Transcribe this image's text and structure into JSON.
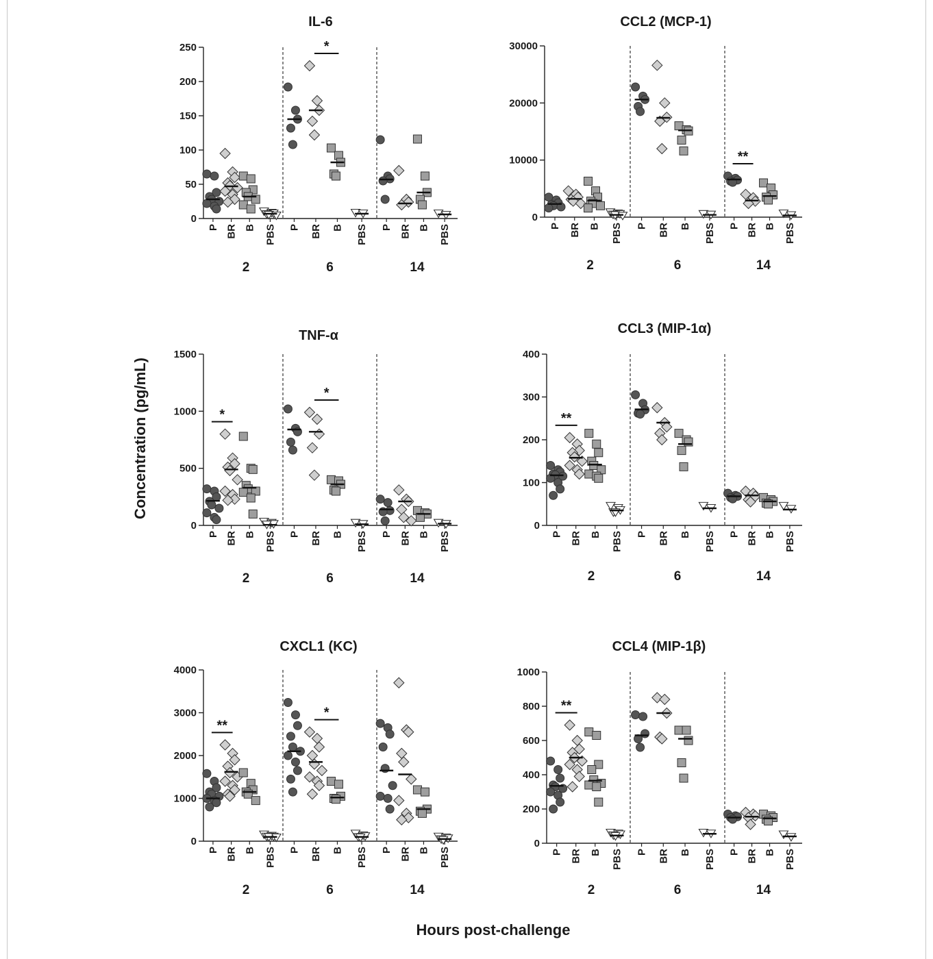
{
  "figure": {
    "ylabel": "Concentration (pg/mL)",
    "xlabel": "Hours post-challenge"
  },
  "colors": {
    "P": "#555555",
    "BR": "#cfcfcf",
    "B": "#9e9e9e",
    "PBS": "#ffffff",
    "stroke": "#333333"
  },
  "chart_data": [
    {
      "type": "scatter",
      "title": "IL-6",
      "ylim": [
        0,
        250
      ],
      "yticks": [
        0,
        50,
        100,
        150,
        200,
        250
      ],
      "timepoints": [
        "2",
        "6",
        "14"
      ],
      "groups": [
        "P",
        "BR",
        "B",
        "PBS"
      ],
      "markers": {
        "P": "circle",
        "BR": "diamond",
        "B": "square",
        "PBS": "triangle-down"
      },
      "data": [
        {
          "P": [
            65,
            62,
            38,
            32,
            28,
            25,
            22,
            18,
            14
          ],
          "BR": [
            95,
            68,
            60,
            52,
            48,
            45,
            40,
            35,
            28,
            24
          ],
          "B": [
            62,
            58,
            42,
            38,
            32,
            28,
            20,
            14
          ],
          "PBS": [
            10,
            8,
            7,
            6,
            5,
            4
          ]
        },
        {
          "P": [
            192,
            158,
            145,
            132,
            108
          ],
          "BR": [
            223,
            172,
            158,
            142,
            122
          ],
          "B": [
            103,
            92,
            82,
            65,
            62
          ],
          "PBS": [
            8,
            7
          ]
        },
        {
          "P": [
            115,
            62,
            58,
            55,
            28
          ],
          "BR": [
            70,
            28,
            24,
            20
          ],
          "B": [
            116,
            62,
            38,
            28,
            20
          ],
          "PBS": [
            7,
            5
          ]
        }
      ],
      "medians": [
        [
          28,
          47,
          32,
          7
        ],
        [
          145,
          158,
          82,
          7
        ],
        [
          57,
          22,
          38,
          6
        ]
      ],
      "significance": [
        {
          "timepoint": 1,
          "from": 1,
          "to": 2,
          "label": "*"
        }
      ]
    },
    {
      "type": "scatter",
      "title": "CCL2 (MCP-1)",
      "ylim": [
        0,
        30000
      ],
      "yticks": [
        0,
        10000,
        20000,
        30000
      ],
      "timepoints": [
        "2",
        "6",
        "14"
      ],
      "groups": [
        "P",
        "BR",
        "B",
        "PBS"
      ],
      "markers": {
        "P": "circle",
        "BR": "diamond",
        "B": "square",
        "PBS": "triangle-down"
      },
      "data": [
        {
          "P": [
            3500,
            3000,
            2500,
            2200,
            2000,
            1800,
            1600
          ],
          "BR": [
            4600,
            4000,
            3500,
            3100,
            2800,
            2400
          ],
          "B": [
            6300,
            4600,
            3500,
            2800,
            2400,
            2000,
            1600
          ],
          "PBS": [
            800,
            600,
            500,
            400,
            300,
            200
          ]
        },
        {
          "P": [
            22800,
            21200,
            20600,
            19400,
            18500
          ],
          "BR": [
            26600,
            20000,
            17500,
            16800,
            12000
          ],
          "B": [
            16000,
            15300,
            15100,
            13500,
            11600
          ],
          "PBS": [
            500,
            400
          ]
        },
        {
          "P": [
            7200,
            6800,
            6500,
            6300,
            6100
          ],
          "BR": [
            4000,
            3400,
            2800,
            2400
          ],
          "B": [
            6000,
            5100,
            3900,
            3500,
            3000
          ],
          "PBS": [
            600,
            300
          ]
        }
      ],
      "medians": [
        [
          2300,
          3200,
          2900,
          400
        ],
        [
          20600,
          17400,
          15200,
          400
        ],
        [
          6600,
          2900,
          3700,
          300
        ]
      ],
      "significance": [
        {
          "timepoint": 2,
          "from": 0,
          "to": 1,
          "label": "**"
        }
      ]
    },
    {
      "type": "scatter",
      "title": "TNF-α",
      "ylim": [
        0,
        1500
      ],
      "yticks": [
        0,
        500,
        1000,
        1500
      ],
      "timepoints": [
        "2",
        "6",
        "14"
      ],
      "groups": [
        "P",
        "BR",
        "B",
        "PBS"
      ],
      "markers": {
        "P": "circle",
        "BR": "diamond",
        "B": "square",
        "PBS": "triangle-down"
      },
      "data": [
        {
          "P": [
            320,
            300,
            250,
            210,
            180,
            150,
            110,
            70,
            50
          ],
          "BR": [
            800,
            590,
            540,
            510,
            480,
            400,
            300,
            270,
            230,
            220
          ],
          "B": [
            780,
            500,
            490,
            350,
            320,
            300,
            290,
            240,
            100
          ],
          "PBS": [
            30,
            20,
            10,
            5
          ]
        },
        {
          "P": [
            1020,
            850,
            820,
            730,
            660
          ],
          "BR": [
            990,
            930,
            800,
            680,
            440
          ],
          "B": [
            400,
            390,
            360,
            310,
            300
          ],
          "PBS": [
            20,
            10
          ]
        },
        {
          "P": [
            230,
            200,
            130,
            120,
            40
          ],
          "BR": [
            310,
            230,
            210,
            140,
            70,
            40
          ],
          "B": [
            130,
            110,
            100,
            70
          ],
          "PBS": [
            20,
            10
          ]
        }
      ],
      "medians": [
        [
          215,
          490,
          330,
          5
        ],
        [
          840,
          820,
          360,
          10
        ],
        [
          140,
          210,
          100,
          15
        ]
      ],
      "significance": [
        {
          "timepoint": 0,
          "from": 0,
          "to": 1,
          "label": "*"
        },
        {
          "timepoint": 1,
          "from": 1,
          "to": 2,
          "label": "*"
        }
      ]
    },
    {
      "type": "scatter",
      "title": "CCL3 (MIP-1α)",
      "ylim": [
        0,
        400
      ],
      "yticks": [
        0,
        100,
        200,
        300,
        400
      ],
      "timepoints": [
        "2",
        "6",
        "14"
      ],
      "groups": [
        "P",
        "BR",
        "B",
        "PBS"
      ],
      "markers": {
        "P": "circle",
        "BR": "diamond",
        "B": "square",
        "PBS": "triangle-down"
      },
      "data": [
        {
          "P": [
            140,
            130,
            125,
            120,
            118,
            115,
            110,
            100,
            85,
            70
          ],
          "BR": [
            205,
            190,
            175,
            170,
            160,
            150,
            140,
            130,
            120
          ],
          "B": [
            215,
            190,
            170,
            150,
            140,
            130,
            120,
            115,
            110
          ],
          "PBS": [
            45,
            40,
            35,
            30,
            30
          ]
        },
        {
          "P": [
            305,
            285,
            270,
            262,
            260
          ],
          "BR": [
            275,
            240,
            230,
            215,
            200
          ],
          "B": [
            215,
            200,
            195,
            175,
            137
          ],
          "PBS": [
            45,
            40
          ]
        },
        {
          "P": [
            75,
            70,
            68,
            65,
            62
          ],
          "BR": [
            80,
            75,
            68,
            60,
            55
          ],
          "B": [
            65,
            60,
            56,
            52,
            50
          ],
          "PBS": [
            45,
            38
          ]
        }
      ],
      "medians": [
        [
          117,
          158,
          142,
          35
        ],
        [
          271,
          240,
          190,
          40
        ],
        [
          68,
          70,
          56,
          37
        ]
      ],
      "significance": [
        {
          "timepoint": 0,
          "from": 0,
          "to": 1,
          "label": "**"
        }
      ]
    },
    {
      "type": "scatter",
      "title": "CXCL1 (KC)",
      "ylim": [
        0,
        4000
      ],
      "yticks": [
        0,
        1000,
        2000,
        3000,
        4000
      ],
      "timepoints": [
        "2",
        "6",
        "14"
      ],
      "groups": [
        "P",
        "BR",
        "B",
        "PBS"
      ],
      "markers": {
        "P": "circle",
        "BR": "diamond",
        "B": "square",
        "PBS": "triangle-down"
      },
      "data": [
        {
          "P": [
            1580,
            1400,
            1250,
            1150,
            1100,
            1050,
            1000,
            950,
            900,
            800
          ],
          "BR": [
            2250,
            2050,
            1900,
            1750,
            1600,
            1500,
            1400,
            1300,
            1200,
            1100,
            1050
          ],
          "B": [
            1600,
            1350,
            1200,
            1150,
            1100,
            950
          ],
          "PBS": [
            150,
            120,
            100,
            100,
            90,
            80
          ]
        },
        {
          "P": [
            3240,
            2950,
            2700,
            2450,
            2200,
            2100,
            2000,
            1850,
            1650,
            1450,
            1150
          ],
          "BR": [
            2550,
            2400,
            2200,
            2000,
            1800,
            1650,
            1500,
            1400,
            1300,
            1100
          ],
          "B": [
            1400,
            1330,
            1050,
            1000,
            980
          ],
          "PBS": [
            170,
            130,
            110,
            90,
            80
          ]
        },
        {
          "P": [
            2750,
            2650,
            2500,
            2200,
            1700,
            1300,
            1050,
            1000,
            750
          ],
          "BR": [
            3700,
            2600,
            2550,
            2050,
            1850,
            1450,
            950,
            650,
            550,
            500
          ],
          "B": [
            1200,
            1150,
            750,
            700,
            650
          ],
          "PBS": [
            100,
            80,
            60,
            40,
            20
          ]
        }
      ],
      "medians": [
        [
          1000,
          1620,
          1150,
          100
        ],
        [
          2100,
          1850,
          1020,
          100
        ],
        [
          1650,
          1560,
          750,
          50
        ]
      ],
      "significance": [
        {
          "timepoint": 0,
          "from": 0,
          "to": 1,
          "label": "**"
        },
        {
          "timepoint": 1,
          "from": 1,
          "to": 2,
          "label": "*"
        }
      ]
    },
    {
      "type": "scatter",
      "title": "CCL4 (MIP-1β)",
      "ylim": [
        0,
        1000
      ],
      "yticks": [
        0,
        200,
        400,
        600,
        800,
        1000
      ],
      "timepoints": [
        "2",
        "6",
        "14"
      ],
      "groups": [
        "P",
        "BR",
        "B",
        "PBS"
      ],
      "markers": {
        "P": "circle",
        "BR": "diamond",
        "B": "square",
        "PBS": "triangle-down"
      },
      "data": [
        {
          "P": [
            480,
            430,
            380,
            340,
            330,
            320,
            300,
            280,
            240,
            200
          ],
          "BR": [
            690,
            600,
            550,
            530,
            500,
            480,
            460,
            430,
            390,
            330
          ],
          "B": [
            650,
            630,
            460,
            430,
            370,
            350,
            340,
            330,
            240
          ],
          "PBS": [
            60,
            55,
            50,
            45,
            40
          ]
        },
        {
          "P": [
            750,
            740,
            640,
            610,
            560
          ],
          "BR": [
            850,
            840,
            760,
            620,
            610
          ],
          "B": [
            660,
            660,
            600,
            470,
            380
          ],
          "PBS": [
            60,
            55
          ]
        },
        {
          "P": [
            170,
            160,
            155,
            150,
            140
          ],
          "BR": [
            180,
            170,
            160,
            150,
            110
          ],
          "B": [
            170,
            160,
            150,
            140,
            130
          ],
          "PBS": [
            50,
            35
          ]
        }
      ],
      "medians": [
        [
          335,
          500,
          365,
          45
        ],
        [
          630,
          760,
          610,
          55
        ],
        [
          150,
          155,
          145,
          40
        ]
      ],
      "significance": [
        {
          "timepoint": 0,
          "from": 0,
          "to": 1,
          "label": "**"
        }
      ]
    }
  ]
}
